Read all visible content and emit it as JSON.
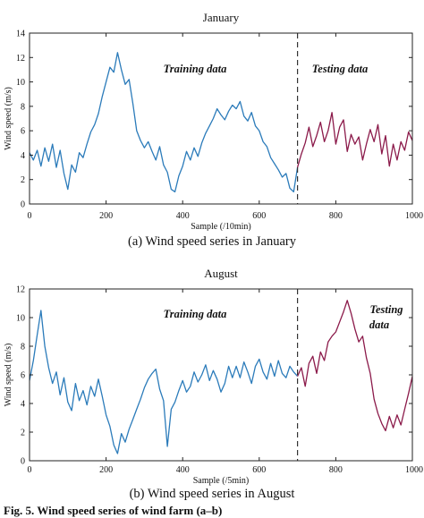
{
  "charts": [
    {
      "caption": "(a) Wind speed series in January",
      "chart_data": {
        "type": "line",
        "title": "January",
        "xlabel": "Sample (/10min)",
        "ylabel": "Wind speed (m/s)",
        "xlim": [
          0,
          1000
        ],
        "ylim": [
          0,
          14
        ],
        "xticks": [
          0,
          200,
          400,
          600,
          800,
          1000
        ],
        "xtick_labels": [
          "0",
          "200",
          "400",
          "600",
          "800",
          "1000"
        ],
        "yticks": [
          0,
          2,
          4,
          6,
          8,
          10,
          12,
          14
        ],
        "split_x": 700,
        "annotations": [
          "Training data",
          "Testing data"
        ],
        "series": [
          {
            "color": "#2b7bba",
            "x": [
              0,
              10,
              20,
              30,
              40,
              50,
              60,
              70,
              80,
              90,
              100,
              110,
              120,
              130,
              140,
              150,
              160,
              170,
              180,
              190,
              200,
              210,
              220,
              230,
              240,
              250,
              260,
              270,
              280,
              290,
              300,
              310,
              320,
              330,
              340,
              350,
              360,
              370,
              380,
              390,
              400,
              410,
              420,
              430,
              440,
              450,
              460,
              470,
              480,
              490,
              500,
              510,
              520,
              530,
              540,
              550,
              560,
              570,
              580,
              590,
              600,
              610,
              620,
              630,
              640,
              650,
              660,
              670,
              680,
              690,
              700
            ],
            "y": [
              4.2,
              3.6,
              4.4,
              3.1,
              4.6,
              3.5,
              4.9,
              3.0,
              4.4,
              2.5,
              1.2,
              3.2,
              2.6,
              4.2,
              3.8,
              4.9,
              5.9,
              6.5,
              7.4,
              8.8,
              10.0,
              11.2,
              10.8,
              12.4,
              11.0,
              9.8,
              10.2,
              8.2,
              6.0,
              5.2,
              4.6,
              5.1,
              4.3,
              3.6,
              4.7,
              3.2,
              2.6,
              1.2,
              1.0,
              2.3,
              3.1,
              4.3,
              3.6,
              4.6,
              3.9,
              5.0,
              5.8,
              6.4,
              7.0,
              7.8,
              7.3,
              6.9,
              7.6,
              8.1,
              7.8,
              8.4,
              7.2,
              6.8,
              7.5,
              6.4,
              6.0,
              5.1,
              4.7,
              3.8,
              3.3,
              2.8,
              2.2,
              2.5,
              1.3,
              1.0,
              3.0
            ]
          },
          {
            "color": "#8b1a4a",
            "x": [
              700,
              710,
              720,
              730,
              740,
              750,
              760,
              770,
              780,
              790,
              800,
              810,
              820,
              830,
              840,
              850,
              860,
              870,
              880,
              890,
              900,
              910,
              920,
              930,
              940,
              950,
              960,
              970,
              980,
              990,
              1000
            ],
            "y": [
              3.0,
              4.1,
              5.0,
              6.3,
              4.7,
              5.6,
              6.7,
              5.1,
              6.0,
              7.5,
              4.9,
              6.3,
              6.9,
              4.3,
              5.7,
              4.9,
              5.5,
              3.6,
              4.9,
              6.1,
              5.1,
              6.5,
              4.1,
              5.6,
              3.1,
              4.9,
              3.6,
              5.1,
              4.4,
              5.9,
              5.2
            ]
          }
        ]
      }
    },
    {
      "caption": "(b) Wind speed series in August",
      "chart_data": {
        "type": "line",
        "title": "August",
        "xlabel": "Sample (/5min)",
        "ylabel": "Wind speed (m/s)",
        "xlim": [
          0,
          1000
        ],
        "ylim": [
          0,
          12
        ],
        "xticks": [
          0,
          200,
          400,
          600,
          800,
          1000
        ],
        "xtick_labels": [
          "0",
          "200",
          "400",
          "600",
          "800",
          "1000"
        ],
        "yticks": [
          0,
          2,
          4,
          6,
          8,
          10,
          12
        ],
        "split_x": 700,
        "annotations": [
          "Training data",
          "Testing",
          "data"
        ],
        "series": [
          {
            "color": "#2b7bba",
            "x": [
              0,
              10,
              20,
              30,
              40,
              50,
              60,
              70,
              80,
              90,
              100,
              110,
              120,
              130,
              140,
              150,
              160,
              170,
              180,
              190,
              200,
              210,
              220,
              230,
              240,
              250,
              260,
              270,
              280,
              290,
              300,
              310,
              320,
              330,
              340,
              350,
              360,
              370,
              380,
              390,
              400,
              410,
              420,
              430,
              440,
              450,
              460,
              470,
              480,
              490,
              500,
              510,
              520,
              530,
              540,
              550,
              560,
              570,
              580,
              590,
              600,
              610,
              620,
              630,
              640,
              650,
              660,
              670,
              680,
              690,
              700
            ],
            "y": [
              5.6,
              7.0,
              8.8,
              10.5,
              8.0,
              6.5,
              5.4,
              6.2,
              4.6,
              5.8,
              4.1,
              3.5,
              5.4,
              4.2,
              4.9,
              3.9,
              5.2,
              4.5,
              5.7,
              4.5,
              3.2,
              2.4,
              1.1,
              0.5,
              1.9,
              1.3,
              2.2,
              2.9,
              3.6,
              4.3,
              5.1,
              5.7,
              6.1,
              6.4,
              5.0,
              4.2,
              1.0,
              3.6,
              4.1,
              4.9,
              5.6,
              4.8,
              5.2,
              6.2,
              5.5,
              6.0,
              6.7,
              5.6,
              6.3,
              5.7,
              4.8,
              5.4,
              6.6,
              5.8,
              6.6,
              5.8,
              6.9,
              6.2,
              5.4,
              6.6,
              7.1,
              6.2,
              5.7,
              6.8,
              5.9,
              7.0,
              6.1,
              5.8,
              6.6,
              6.2,
              5.9
            ]
          },
          {
            "color": "#8b1a4a",
            "x": [
              700,
              710,
              720,
              730,
              740,
              750,
              760,
              770,
              780,
              790,
              800,
              810,
              820,
              830,
              840,
              850,
              860,
              870,
              880,
              890,
              900,
              910,
              920,
              930,
              940,
              950,
              960,
              970,
              980,
              990,
              1000
            ],
            "y": [
              5.9,
              6.5,
              5.2,
              6.8,
              7.3,
              6.1,
              7.6,
              7.0,
              8.3,
              8.7,
              9.0,
              9.7,
              10.4,
              11.2,
              10.3,
              9.2,
              8.3,
              8.7,
              7.2,
              6.1,
              4.3,
              3.3,
              2.6,
              2.1,
              3.1,
              2.3,
              3.2,
              2.5,
              3.6,
              4.7,
              5.9
            ]
          }
        ]
      }
    }
  ],
  "footer": "Fig. 5.   Wind speed series of wind farm (a–b)"
}
